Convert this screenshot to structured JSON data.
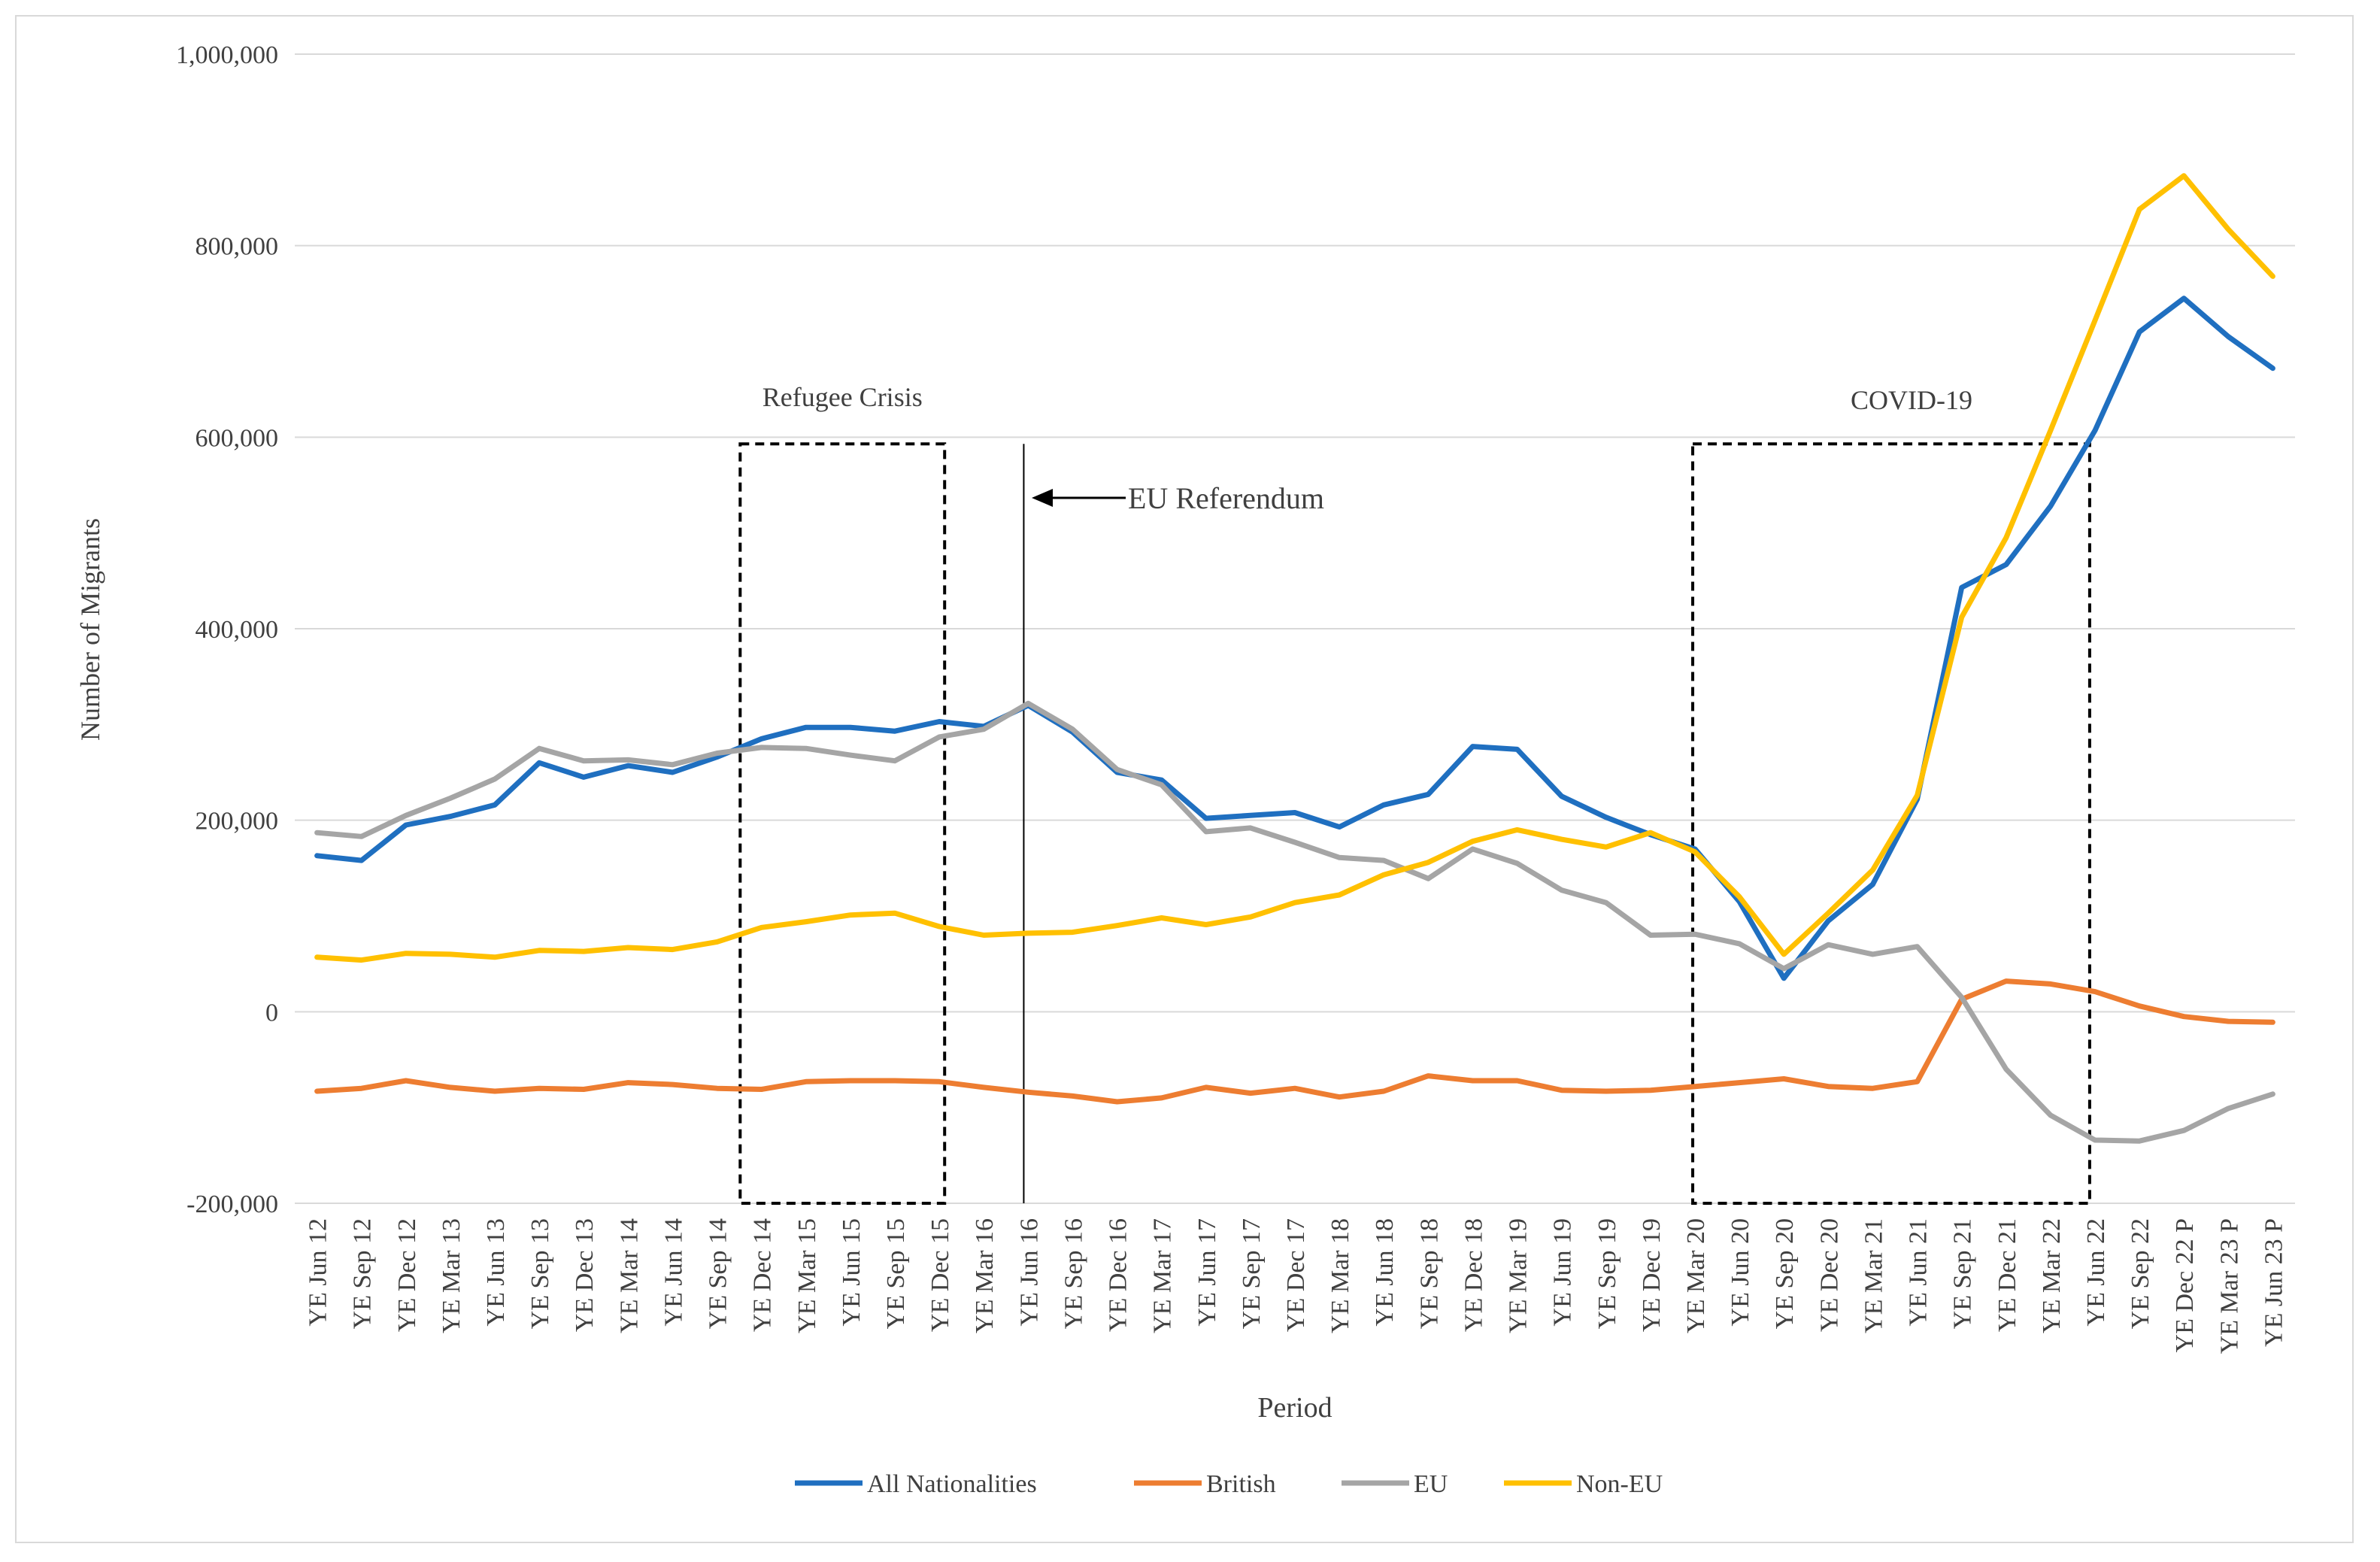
{
  "chart_data": {
    "type": "line",
    "title": "",
    "xlabel": "Period",
    "ylabel": "Number of Migrants",
    "ylim": [
      -200000,
      1000000
    ],
    "yticks": [
      -200000,
      0,
      200000,
      400000,
      600000,
      800000,
      1000000
    ],
    "ytick_labels": [
      "-200,000",
      "0",
      "200,000",
      "400,000",
      "600,000",
      "800,000",
      "1,000,000"
    ],
    "grid": true,
    "legend_position": "bottom",
    "categories": [
      "YE Jun 12",
      "YE Sep 12",
      "YE Dec 12",
      "YE Mar 13",
      "YE Jun 13",
      "YE Sep 13",
      "YE Dec 13",
      "YE Mar 14",
      "YE Jun 14",
      "YE Sep 14",
      "YE Dec 14",
      "YE Mar 15",
      "YE Jun 15",
      "YE Sep 15",
      "YE Dec 15",
      "YE Mar 16",
      "YE Jun 16",
      "YE Sep 16",
      "YE Dec 16",
      "YE Mar 17",
      "YE Jun 17",
      "YE Sep 17",
      "YE Dec 17",
      "YE Mar 18",
      "YE Jun 18",
      "YE Sep 18",
      "YE Dec 18",
      "YE Mar 19",
      "YE Jun 19",
      "YE Sep 19",
      "YE Dec 19",
      "YE Mar 20",
      "YE Jun 20",
      "YE Sep 20",
      "YE Dec 20",
      "YE Mar 21",
      "YE Jun 21",
      "YE Sep 21",
      "YE Dec 21",
      "YE Mar 22",
      "YE Jun 22",
      "YE Sep 22",
      "YE Dec 22 P",
      "YE Mar 23 P",
      "YE Jun 23 P"
    ],
    "series": [
      {
        "name": "All Nationalities",
        "color": "#1f6fc0",
        "values": [
          163000,
          158000,
          195000,
          204000,
          216000,
          260000,
          245000,
          257000,
          250000,
          266000,
          285000,
          297000,
          297000,
          293000,
          303000,
          298000,
          320000,
          292000,
          250000,
          242000,
          202000,
          205000,
          208000,
          193000,
          216000,
          227000,
          277000,
          274000,
          225000,
          203000,
          185000,
          170000,
          115000,
          35000,
          95000,
          133000,
          222000,
          443000,
          467000,
          528000,
          607000,
          710000,
          745000,
          705000,
          672000
        ]
      },
      {
        "name": "British",
        "color": "#ed7d31",
        "values": [
          -83000,
          -80000,
          -72000,
          -79000,
          -83000,
          -80000,
          -81000,
          -74000,
          -76000,
          -80000,
          -81000,
          -73000,
          -72000,
          -72000,
          -73000,
          -79000,
          -84000,
          -88000,
          -94000,
          -90000,
          -79000,
          -85000,
          -80000,
          -89000,
          -83000,
          -67000,
          -72000,
          -72000,
          -82000,
          -83000,
          -82000,
          -78000,
          -74000,
          -70000,
          -78000,
          -80000,
          -73000,
          13000,
          32000,
          29000,
          21000,
          6000,
          -5000,
          -10000,
          -11000
        ]
      },
      {
        "name": "EU",
        "color": "#a5a5a5",
        "values": [
          187000,
          183000,
          205000,
          223000,
          243000,
          275000,
          262000,
          263000,
          258000,
          270000,
          276000,
          275000,
          268000,
          262000,
          287000,
          295000,
          322000,
          295000,
          253000,
          237000,
          188000,
          192000,
          177000,
          161000,
          158000,
          139000,
          170000,
          155000,
          127000,
          114000,
          80000,
          81000,
          71000,
          45000,
          70000,
          60000,
          68000,
          15000,
          -60000,
          -108000,
          -134000,
          -135000,
          -124000,
          -101000,
          -86000
        ]
      },
      {
        "name": "Non-EU",
        "color": "#ffc000",
        "values": [
          57000,
          54000,
          61000,
          60000,
          57000,
          64000,
          63000,
          67000,
          65000,
          73000,
          88000,
          94000,
          101000,
          103000,
          89000,
          80000,
          82000,
          83000,
          90000,
          98000,
          91000,
          99000,
          114000,
          122000,
          143000,
          156000,
          178000,
          190000,
          180000,
          172000,
          187000,
          167000,
          120000,
          60000,
          103000,
          148000,
          226000,
          412000,
          495000,
          607000,
          722000,
          838000,
          873000,
          817000,
          768000
        ]
      }
    ],
    "annotations": {
      "refugee_crisis": "Refugee Crisis",
      "eu_referendum": "EU Referendum",
      "covid": "COVID-19"
    }
  }
}
